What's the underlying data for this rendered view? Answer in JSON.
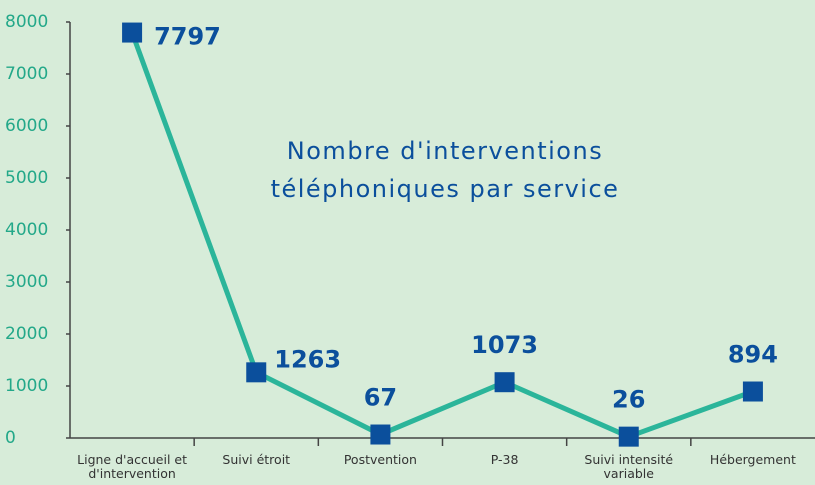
{
  "chart_data": {
    "type": "line",
    "title": "Nombre d'interventions téléphoniques par service",
    "categories": [
      "Ligne d'accueil et d'intervention",
      "Suivi étroit",
      "Postvention",
      "P-38",
      "Suivi intensité variable",
      "Hébergement"
    ],
    "series": [
      {
        "color": "#2bb59a",
        "marker_color": "#0b4f9c",
        "values": [
          7797,
          1263,
          67,
          1073,
          26,
          894
        ]
      }
    ],
    "ylim": [
      0,
      8000
    ],
    "yticks": [
      0,
      1000,
      2000,
      3000,
      4000,
      5000,
      6000,
      7000,
      8000
    ]
  }
}
